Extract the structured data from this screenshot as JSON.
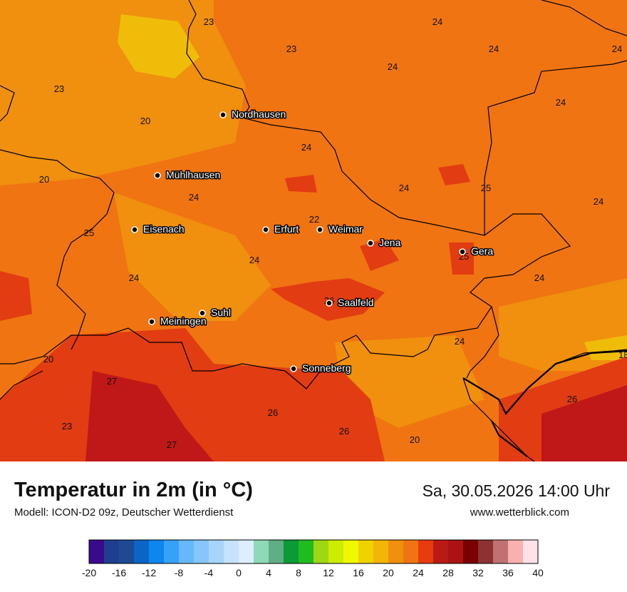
{
  "map": {
    "value_labels": [
      "23",
      "24",
      "23",
      "24",
      "24",
      "24",
      "23",
      "24",
      "20",
      "24",
      "20",
      "24",
      "24",
      "25",
      "24",
      "25",
      "22",
      "24",
      "24",
      "25",
      "24",
      "26",
      "24",
      "20",
      "27",
      "26",
      "18",
      "23",
      "26",
      "26",
      "27",
      "20"
    ],
    "cities": [
      "Nordhausen",
      "Mühlhausen",
      "Eisenach",
      "Erfurt",
      "Weimar",
      "Jena",
      "Gera",
      "Saalfeld",
      "Suhl",
      "Meiningen",
      "Sonneberg"
    ]
  },
  "footer": {
    "title": "Temperatur in 2m (in °C)",
    "model": "Modell: ICON-D2 09z, Deutscher Wetterdienst",
    "datetime": "Sa, 30.05.2026 14:00 Uhr",
    "website": "www.wetterblick.com"
  },
  "legend": {
    "ticks": [
      "-20",
      "-16",
      "-12",
      "-8",
      "-4",
      "0",
      "4",
      "8",
      "12",
      "16",
      "20",
      "24",
      "28",
      "32",
      "36",
      "40"
    ],
    "colors": [
      "#3a0a8c",
      "#1e3f8f",
      "#1d4a93",
      "#0a65c7",
      "#0d86f0",
      "#36a2f7",
      "#66b8fa",
      "#86c6fb",
      "#a8d4fc",
      "#c6e2fd",
      "#ddefff",
      "#8fd9b8",
      "#5fae86",
      "#0b9a36",
      "#1fbc20",
      "#9ed713",
      "#ccec00",
      "#f0f800",
      "#f0d200",
      "#f2b508",
      "#f0900e",
      "#f07412",
      "#e63c0e",
      "#bb1a14",
      "#ac1214",
      "#7a0000",
      "#8c3232",
      "#c07272",
      "#f7b1ae",
      "#fee2e7"
    ],
    "accent_colors": {
      "orange": "#f07412",
      "dark_orange": "#ee5a10",
      "red": "#e23c12",
      "light_orange": "#f0900e",
      "yellow": "#f0bc0a",
      "dark_red": "#c01818"
    }
  }
}
